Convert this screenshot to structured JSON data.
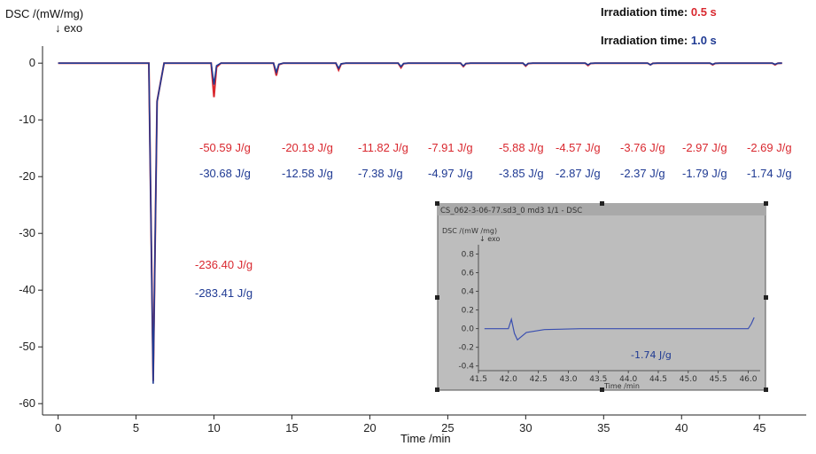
{
  "colors": {
    "red": "#d9282f",
    "blue": "#1f3a93",
    "axis": "#222222",
    "inset_frame": "#bdbdbd"
  },
  "legend": [
    {
      "label": "Irradiation time: ",
      "value": "0.5 s",
      "color": "#d9282f"
    },
    {
      "label": "Irradiation time: ",
      "value": "1.0 s",
      "color": "#1f3a93"
    }
  ],
  "chart_data": {
    "type": "line",
    "title": "",
    "ylabel": "DSC /(mW/mg)",
    "ylabel_sub": "↓ exo",
    "xlabel": "Time /min",
    "xlim": [
      -1,
      48
    ],
    "ylim": [
      -62,
      3
    ],
    "xticks": [
      0,
      5,
      10,
      15,
      20,
      25,
      30,
      35,
      40,
      45
    ],
    "yticks": [
      0,
      -10,
      -20,
      -30,
      -40,
      -50,
      -60
    ],
    "series": [
      {
        "color": "#d9282f",
        "peaks": [
          {
            "x": 6.1,
            "depth": -56.0
          },
          {
            "x": 10.0,
            "depth": -6.0
          },
          {
            "x": 14.0,
            "depth": -2.2
          },
          {
            "x": 18.0,
            "depth": -1.2
          },
          {
            "x": 22.0,
            "depth": -0.8
          },
          {
            "x": 26.0,
            "depth": -0.6
          },
          {
            "x": 30.0,
            "depth": -0.5
          },
          {
            "x": 34.0,
            "depth": -0.4
          },
          {
            "x": 38.0,
            "depth": -0.3
          },
          {
            "x": 42.0,
            "depth": -0.3
          },
          {
            "x": 46.0,
            "depth": -0.3
          }
        ]
      },
      {
        "color": "#1f3a93",
        "peaks": [
          {
            "x": 6.1,
            "depth": -56.5
          },
          {
            "x": 10.0,
            "depth": -3.8
          },
          {
            "x": 14.0,
            "depth": -1.6
          },
          {
            "x": 18.0,
            "depth": -0.9
          },
          {
            "x": 22.0,
            "depth": -0.6
          },
          {
            "x": 26.0,
            "depth": -0.5
          },
          {
            "x": 30.0,
            "depth": -0.4
          },
          {
            "x": 34.0,
            "depth": -0.3
          },
          {
            "x": 38.0,
            "depth": -0.3
          },
          {
            "x": 42.0,
            "depth": -0.2
          },
          {
            "x": 46.0,
            "depth": -0.2
          }
        ]
      }
    ],
    "annotations_red": [
      "-50.59 J/g",
      "-20.19 J/g",
      "-11.82 J/g",
      "-7.91 J/g",
      "-5.88 J/g",
      "-4.57 J/g",
      "-3.76 J/g",
      "-2.97 J/g",
      "-2.69 J/g"
    ],
    "annotations_blue": [
      "-30.68 J/g",
      "-12.58 J/g",
      "-7.38 J/g",
      "-4.97 J/g",
      "-3.85 J/g",
      "-2.87 J/g",
      "-2.37 J/g",
      "-1.79 J/g",
      "-1.74 J/g"
    ],
    "main_peak_red": "-236.40 J/g",
    "main_peak_blue": "-283.41 J/g"
  },
  "inset": {
    "title": "CS_062-3-06-77.sd3_0 md3 1/1 - DSC",
    "ylabel": "DSC /(mW /mg)",
    "ylabel_sub": "↓ exo",
    "xlabel": "Time /min",
    "xlim": [
      41.5,
      46.2
    ],
    "ylim": [
      -0.45,
      0.9
    ],
    "xticks": [
      "41.5",
      "42.0",
      "42.5",
      "43.0",
      "43.5",
      "44.0",
      "44.5",
      "45.0",
      "45.5",
      "46.0"
    ],
    "yticks": [
      "0.8",
      "0.6",
      "0.4",
      "0.2",
      "0.0",
      "-0.2",
      "-0.4"
    ],
    "annotation": "-1.74 J/g"
  }
}
